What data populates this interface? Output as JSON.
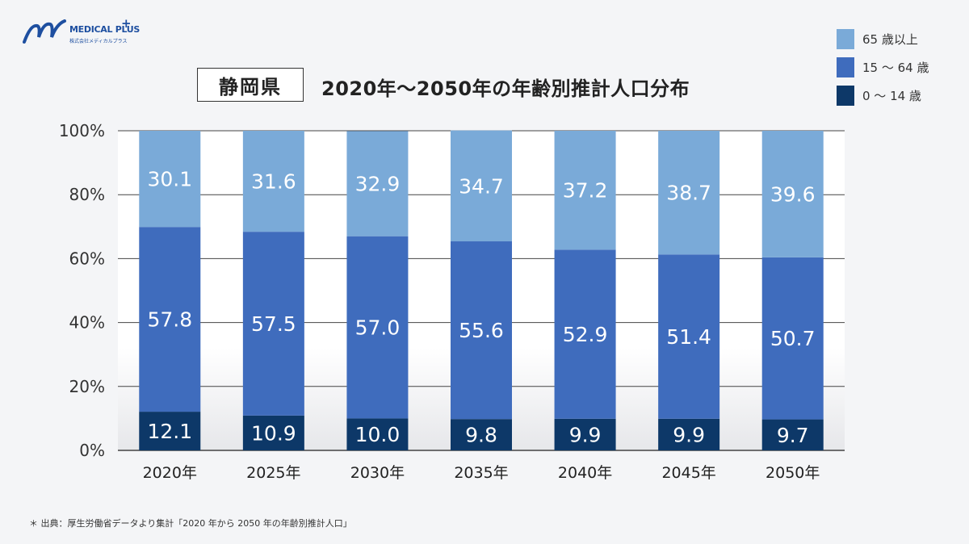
{
  "logo": {
    "name": "MEDICAL PLUS",
    "plus": "+",
    "subtitle": "株式会社メディカルプラス"
  },
  "title": {
    "prefecture": "静岡県",
    "main": "2020年～2050年の年齢別推計人口分布"
  },
  "legend": [
    {
      "label": "65 歳以上",
      "color": "#7aaad8"
    },
    {
      "label": "15 ～ 64 歳",
      "color": "#3f6cbd"
    },
    {
      "label": "0 ～ 14 歳",
      "color": "#0d3868"
    }
  ],
  "source": "＊ 出典：厚生労働省データより集計「2020 年から 2050 年の年齢別推計人口」",
  "chart_data": {
    "type": "bar",
    "stacked": true,
    "categories": [
      "2020年",
      "2025年",
      "2030年",
      "2035年",
      "2040年",
      "2045年",
      "2050年"
    ],
    "series": [
      {
        "name": "0 ～ 14 歳",
        "values": [
          12.1,
          10.9,
          10.0,
          9.8,
          9.9,
          9.9,
          9.7
        ],
        "color": "#0d3868"
      },
      {
        "name": "15 ～ 64 歳",
        "values": [
          57.8,
          57.5,
          57.0,
          55.6,
          52.9,
          51.4,
          50.7
        ],
        "color": "#3f6cbd"
      },
      {
        "name": "65 歳以上",
        "values": [
          30.1,
          31.6,
          32.9,
          34.7,
          37.2,
          38.7,
          39.6
        ],
        "color": "#7aaad8"
      }
    ],
    "yticks": [
      "0%",
      "20%",
      "40%",
      "60%",
      "80%",
      "100%"
    ],
    "ylim": [
      0,
      100
    ],
    "grid": true,
    "legend_position": "top-right"
  }
}
